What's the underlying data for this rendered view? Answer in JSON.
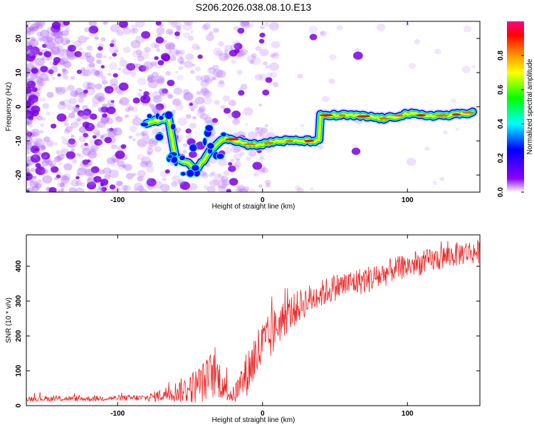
{
  "figure": {
    "title": "S206.2026.038.08.10.E13"
  },
  "chart_data": [
    {
      "type": "heatmap",
      "title": "S206.2026.038.08.10.E13",
      "xlabel": "Height of straight line (km)",
      "ylabel": "Frequency (Hz)",
      "xlim": [
        -163,
        150
      ],
      "ylim": [
        -25,
        25
      ],
      "x_ticks": [
        -100,
        0,
        100
      ],
      "y_ticks": [
        20,
        10,
        0,
        -10,
        -20
      ],
      "x_tick_labels": [
        "-100",
        "0",
        "100"
      ],
      "y_tick_labels": [
        "20",
        "10",
        "0",
        "-10",
        "-20"
      ],
      "colorbar": {
        "label": "Normalized spectral amplitude",
        "range": [
          0,
          1
        ],
        "ticks": [
          0.0,
          0.2,
          0.4,
          0.6,
          0.8
        ],
        "tick_labels": [
          "0.0",
          "0.2",
          "0.4",
          "0.6",
          "0.8"
        ],
        "colormap": [
          "#ffffff",
          "#8b00ff",
          "#0000ff",
          "#00ffff",
          "#00ff00",
          "#ffff00",
          "#ff8000",
          "#ff0000",
          "#ff0088"
        ]
      },
      "ridge": {
        "description_points": [
          [
            -80,
            -5
          ],
          [
            -65,
            -3
          ],
          [
            -60,
            -15
          ],
          [
            -45,
            -18
          ],
          [
            -38,
            -14
          ],
          [
            -30,
            -10
          ],
          [
            -25,
            -9
          ],
          [
            -10,
            -11
          ],
          [
            0,
            -11
          ],
          [
            10,
            -10
          ],
          [
            20,
            -10
          ],
          [
            39,
            -10
          ],
          [
            40,
            -2.5
          ],
          [
            60,
            -2.5
          ],
          [
            75,
            -3
          ],
          [
            85,
            -3.5
          ],
          [
            95,
            -2.5
          ],
          [
            100,
            -2
          ],
          [
            110,
            -2.5
          ],
          [
            130,
            -2.5
          ],
          [
            145,
            -1.5
          ]
        ],
        "strong_segments": [
          [
            -25,
            39
          ],
          [
            40,
            148
          ]
        ]
      }
    },
    {
      "type": "line",
      "title": "",
      "xlabel": "Height of straight line (km)",
      "ylabel": "SNR (10 * v/v)",
      "xlim": [
        -163,
        150
      ],
      "ylim": [
        0,
        490
      ],
      "x_ticks": [
        -100,
        0,
        100
      ],
      "y_ticks": [
        0,
        100,
        200,
        300,
        400
      ],
      "x_tick_labels": [
        "-100",
        "0",
        "100"
      ],
      "y_tick_labels": [
        "0",
        "100",
        "200",
        "300",
        "400"
      ],
      "line_color": "#ee2222",
      "series": [
        {
          "name": "SNR",
          "trend_x": [
            -163,
            -140,
            -120,
            -100,
            -80,
            -70,
            -60,
            -50,
            -40,
            -35,
            -30,
            -25,
            -20,
            -15,
            -10,
            -5,
            0,
            5,
            10,
            20,
            30,
            40,
            50,
            60,
            70,
            80,
            90,
            100,
            110,
            120,
            130,
            140,
            150
          ],
          "trend_y": [
            20,
            20,
            20,
            22,
            22,
            30,
            40,
            50,
            70,
            90,
            80,
            40,
            30,
            60,
            100,
            140,
            170,
            190,
            230,
            270,
            300,
            320,
            340,
            350,
            360,
            370,
            390,
            400,
            410,
            420,
            430,
            440,
            440
          ],
          "noise_amplitude": [
            8,
            8,
            8,
            8,
            10,
            20,
            30,
            45,
            60,
            70,
            60,
            30,
            25,
            50,
            70,
            80,
            80,
            70,
            60,
            50,
            45,
            40,
            40,
            40,
            40,
            40,
            35,
            35,
            35,
            35,
            35,
            35,
            35
          ]
        }
      ]
    }
  ]
}
